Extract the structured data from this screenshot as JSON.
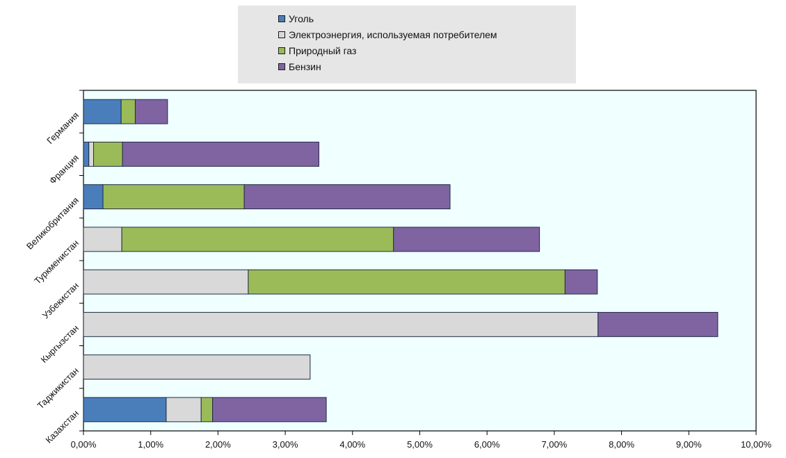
{
  "chart_data": {
    "type": "bar",
    "orientation": "horizontal",
    "stacked": true,
    "categories": [
      "Германия",
      "Франция",
      "Великобритания",
      "Туркменистан",
      "Узбекистан",
      "Кыргызстан",
      "Таджикистан",
      "Казахстан"
    ],
    "series": [
      {
        "name": "Уголь",
        "color": "#4a7ebb",
        "values": [
          0.56,
          0.08,
          0.29,
          0,
          0,
          0,
          0,
          1.23
        ]
      },
      {
        "name": "Электроэнергия, используемая потребителем",
        "color": "#d9d9d9",
        "values": [
          0,
          0.07,
          0,
          0.57,
          2.45,
          7.65,
          3.37,
          0.52
        ]
      },
      {
        "name": "Природный газ",
        "color": "#9bbb59",
        "values": [
          0.21,
          0.43,
          2.1,
          4.04,
          4.71,
          0,
          0,
          0.17
        ]
      },
      {
        "name": "Бензин",
        "color": "#8064a2",
        "values": [
          0.48,
          2.92,
          3.06,
          2.17,
          0.48,
          1.78,
          0,
          1.69
        ]
      }
    ],
    "x_ticks": [
      "0,00%",
      "1,00%",
      "2,00%",
      "3,00%",
      "4,00%",
      "5,00%",
      "6,00%",
      "7,00%",
      "8,00%",
      "9,00%",
      "10,00%"
    ],
    "xlim": [
      0,
      10
    ],
    "legend_position": "top-center",
    "plot_background": "#f0ffff",
    "grid": false,
    "title": "",
    "xlabel": "",
    "ylabel": ""
  }
}
